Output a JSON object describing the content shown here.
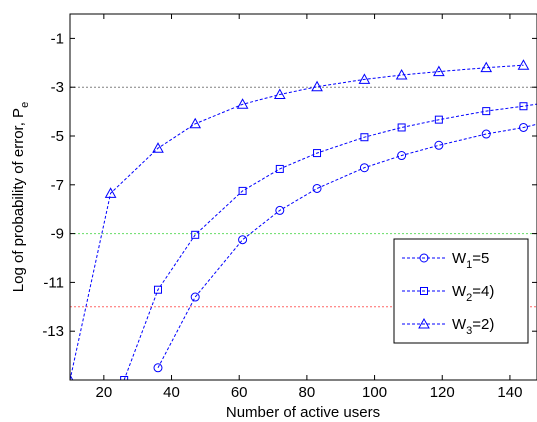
{
  "chart_data": {
    "type": "line",
    "xlabel": "Number of active users",
    "ylabel": {
      "main": "Log of probability of error, P",
      "sub": "e"
    },
    "xlim": [
      10,
      148
    ],
    "ylim": [
      -15,
      0
    ],
    "xticks": [
      20,
      40,
      60,
      80,
      100,
      120,
      140
    ],
    "yticks": [
      -1,
      -3,
      -5,
      -7,
      -9,
      -11,
      -13
    ],
    "grid": false,
    "legend_position": "lower-right",
    "series": [
      {
        "name": {
          "main": "W",
          "sub": "1",
          "rest": "=5"
        },
        "marker": "circle",
        "color": "#0000ff",
        "x": [
          36,
          47,
          61,
          72,
          83,
          97,
          108,
          119,
          133,
          144,
          150
        ],
        "y": [
          -14.5,
          -11.6,
          -9.25,
          -8.05,
          -7.15,
          -6.3,
          -5.8,
          -5.38,
          -4.92,
          -4.65,
          -4.45
        ]
      },
      {
        "name": {
          "main": "W",
          "sub": "2",
          "rest": "=4)"
        },
        "marker": "square",
        "color": "#0000ff",
        "x": [
          26,
          36,
          47,
          61,
          72,
          83,
          97,
          108,
          119,
          133,
          144,
          150
        ],
        "y": [
          -15.0,
          -11.3,
          -9.05,
          -7.25,
          -6.35,
          -5.7,
          -5.05,
          -4.65,
          -4.33,
          -3.98,
          -3.78,
          -3.65
        ]
      },
      {
        "name": {
          "main": "W",
          "sub": "3",
          "rest": "=2)"
        },
        "marker": "triangle",
        "color": "#0000ff",
        "x": [
          10,
          22,
          36,
          47,
          61,
          72,
          83,
          97,
          108,
          119,
          133,
          144
        ],
        "y": [
          -15.0,
          -7.35,
          -5.5,
          -4.5,
          -3.7,
          -3.3,
          -2.98,
          -2.68,
          -2.5,
          -2.36,
          -2.2,
          -2.1
        ]
      }
    ],
    "reference_lines": [
      {
        "y": -3,
        "color": "#808080"
      },
      {
        "y": -9,
        "color": "#66dd66"
      },
      {
        "y": -12,
        "color": "#ff6666"
      }
    ]
  }
}
